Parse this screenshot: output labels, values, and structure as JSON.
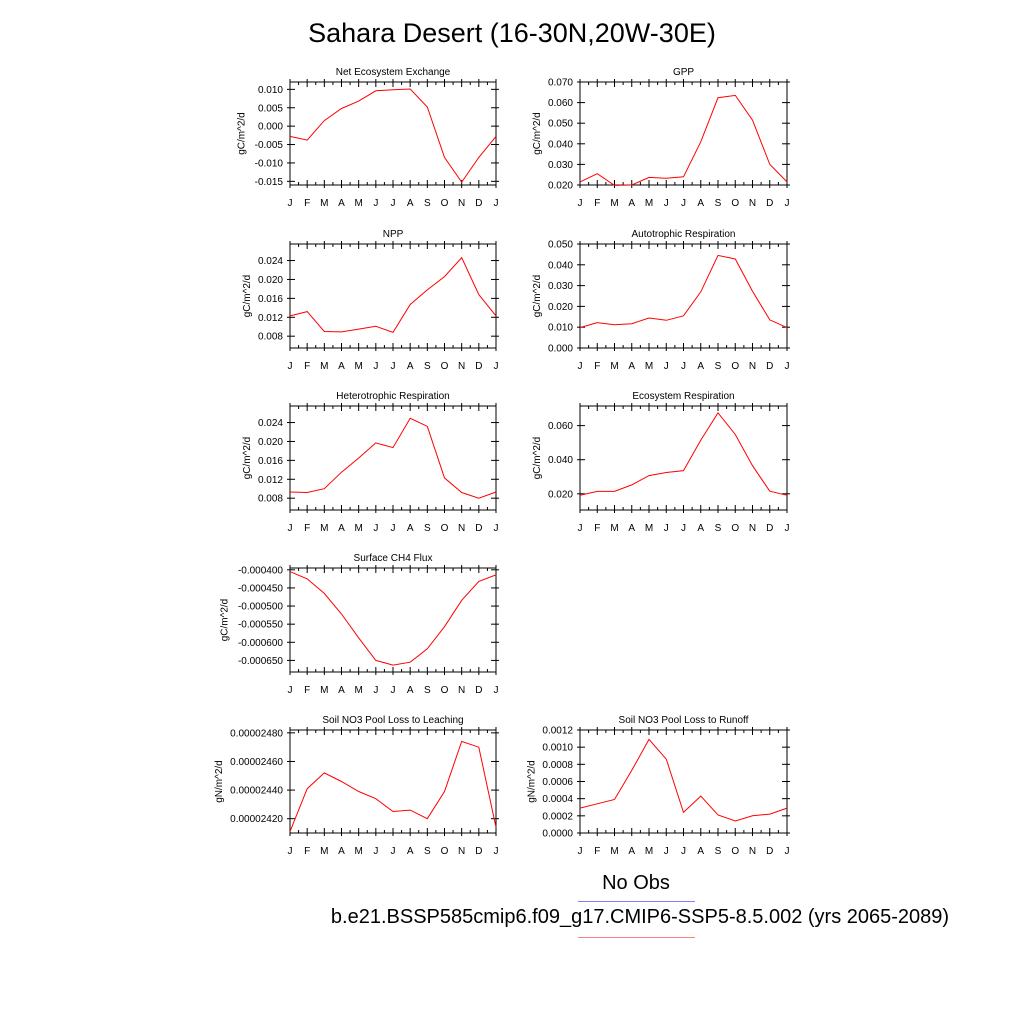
{
  "title": "Sahara Desert (16-30N,20W-30E)",
  "legend": {
    "obs_label": "No Obs",
    "case_label": "b.e21.BSSP585cmip6.f09_g17.CMIP6-SSP5-8.5.002 (yrs 2065-2089)",
    "obs_color": "#8080ff",
    "case_color": "#ff8080"
  },
  "chart_data": [
    {
      "type": "line",
      "title": "Net Ecosystem Exchange",
      "ylabel": "gC/m^2/d",
      "categories": [
        "J",
        "F",
        "M",
        "A",
        "M",
        "J",
        "J",
        "A",
        "S",
        "O",
        "N",
        "D",
        "J"
      ],
      "ylim": [
        -0.016,
        0.012
      ],
      "yticks": [
        -0.015,
        -0.01,
        -0.005,
        0.0,
        0.005,
        0.01
      ],
      "ytick_labels": [
        "-0.015",
        "-0.010",
        "-0.005",
        "0.000",
        "0.005",
        "0.010"
      ],
      "series": [
        {
          "color": "#ff0000",
          "values": [
            -0.0028,
            -0.0038,
            0.0015,
            0.0048,
            0.0068,
            0.0096,
            0.0099,
            0.0101,
            0.0052,
            -0.0085,
            -0.0152,
            -0.0085,
            -0.0028
          ]
        }
      ]
    },
    {
      "type": "line",
      "title": "GPP",
      "ylabel": "gC/m^2/d",
      "categories": [
        "J",
        "F",
        "M",
        "A",
        "M",
        "J",
        "J",
        "A",
        "S",
        "O",
        "N",
        "D",
        "J"
      ],
      "ylim": [
        0.02,
        0.07
      ],
      "yticks": [
        0.02,
        0.03,
        0.04,
        0.05,
        0.06,
        0.07
      ],
      "ytick_labels": [
        "0.020",
        "0.030",
        "0.040",
        "0.050",
        "0.060",
        "0.070"
      ],
      "series": [
        {
          "color": "#ff0000",
          "values": [
            0.0215,
            0.0255,
            0.0198,
            0.02,
            0.0237,
            0.0233,
            0.024,
            0.041,
            0.0624,
            0.0635,
            0.0515,
            0.03,
            0.0215
          ]
        }
      ]
    },
    {
      "type": "line",
      "title": "NPP",
      "ylabel": "gC/m^2/d",
      "categories": [
        "J",
        "F",
        "M",
        "A",
        "M",
        "J",
        "J",
        "A",
        "S",
        "O",
        "N",
        "D",
        "J"
      ],
      "ylim": [
        0.0055,
        0.0275
      ],
      "yticks": [
        0.008,
        0.012,
        0.016,
        0.02,
        0.024
      ],
      "ytick_labels": [
        "0.008",
        "0.012",
        "0.016",
        "0.020",
        "0.024"
      ],
      "series": [
        {
          "color": "#ff0000",
          "values": [
            0.0123,
            0.0132,
            0.009,
            0.0089,
            0.0095,
            0.0101,
            0.0088,
            0.0147,
            0.0178,
            0.0206,
            0.0246,
            0.0168,
            0.0123
          ]
        }
      ]
    },
    {
      "type": "line",
      "title": "Autotrophic Respiration",
      "ylabel": "gC/m^2/d",
      "categories": [
        "J",
        "F",
        "M",
        "A",
        "M",
        "J",
        "J",
        "A",
        "S",
        "O",
        "N",
        "D",
        "J"
      ],
      "ylim": [
        0.0,
        0.05
      ],
      "yticks": [
        0.0,
        0.01,
        0.02,
        0.03,
        0.04,
        0.05
      ],
      "ytick_labels": [
        "0.000",
        "0.010",
        "0.020",
        "0.030",
        "0.040",
        "0.050"
      ],
      "series": [
        {
          "color": "#ff0000",
          "values": [
            0.0098,
            0.0122,
            0.0112,
            0.0117,
            0.0144,
            0.0133,
            0.0155,
            0.027,
            0.0445,
            0.0428,
            0.0273,
            0.0135,
            0.0098
          ]
        }
      ]
    },
    {
      "type": "line",
      "title": "Heterotrophic Respiration",
      "ylabel": "gC/m^2/d",
      "categories": [
        "J",
        "F",
        "M",
        "A",
        "M",
        "J",
        "J",
        "A",
        "S",
        "O",
        "N",
        "D",
        "J"
      ],
      "ylim": [
        0.0055,
        0.0275
      ],
      "yticks": [
        0.008,
        0.012,
        0.016,
        0.02,
        0.024
      ],
      "ytick_labels": [
        "0.008",
        "0.012",
        "0.016",
        "0.020",
        "0.024"
      ],
      "series": [
        {
          "color": "#ff0000",
          "values": [
            0.0093,
            0.0092,
            0.01,
            0.0135,
            0.0165,
            0.0197,
            0.0187,
            0.0249,
            0.0232,
            0.0123,
            0.0092,
            0.008,
            0.0093
          ]
        }
      ]
    },
    {
      "type": "line",
      "title": "Ecosystem Respiration",
      "ylabel": "gC/m^2/d",
      "categories": [
        "J",
        "F",
        "M",
        "A",
        "M",
        "J",
        "J",
        "A",
        "S",
        "O",
        "N",
        "D",
        "J"
      ],
      "ylim": [
        0.0105,
        0.0715
      ],
      "yticks": [
        0.02,
        0.04,
        0.06
      ],
      "ytick_labels": [
        "0.020",
        "0.040",
        "0.060"
      ],
      "series": [
        {
          "color": "#ff0000",
          "values": [
            0.0191,
            0.0214,
            0.0214,
            0.0252,
            0.0307,
            0.0325,
            0.0336,
            0.0515,
            0.0675,
            0.0548,
            0.0365,
            0.0215,
            0.0191
          ]
        }
      ]
    },
    {
      "type": "line",
      "title": "Surface CH4 Flux",
      "ylabel": "gC/m^2/d",
      "categories": [
        "J",
        "F",
        "M",
        "A",
        "M",
        "J",
        "J",
        "A",
        "S",
        "O",
        "N",
        "D",
        "J"
      ],
      "ylim": [
        -0.000682,
        -0.000395
      ],
      "yticks": [
        -0.00065,
        -0.0006,
        -0.00055,
        -0.0005,
        -0.00045,
        -0.0004
      ],
      "ytick_labels": [
        "-0.000650",
        "-0.000600",
        "-0.000550",
        "-0.000500",
        "-0.000450",
        "-0.000400"
      ],
      "series": [
        {
          "color": "#ff0000",
          "values": [
            -0.000405,
            -0.000425,
            -0.000465,
            -0.000522,
            -0.000588,
            -0.00065,
            -0.000663,
            -0.000655,
            -0.000618,
            -0.000557,
            -0.000484,
            -0.000432,
            -0.000414
          ]
        }
      ]
    },
    {
      "type": "line",
      "title": "Soil NO3 Pool Loss to Leaching",
      "ylabel": "gN/m^2/d",
      "categories": [
        "J",
        "F",
        "M",
        "A",
        "M",
        "J",
        "J",
        "A",
        "S",
        "O",
        "N",
        "D",
        "J"
      ],
      "ylim": [
        2.41e-05,
        2.482e-05
      ],
      "yticks": [
        2.42e-05,
        2.44e-05,
        2.46e-05,
        2.48e-05
      ],
      "ytick_labels": [
        "0.00002420",
        "0.00002440",
        "0.00002460",
        "0.00002480"
      ],
      "series": [
        {
          "color": "#ff0000",
          "values": [
            2.411e-05,
            2.441e-05,
            2.452e-05,
            2.446e-05,
            2.439e-05,
            2.434e-05,
            2.425e-05,
            2.426e-05,
            2.42e-05,
            2.439e-05,
            2.474e-05,
            2.47e-05,
            2.414e-05
          ]
        }
      ]
    },
    {
      "type": "line",
      "title": "Soil NO3 Pool Loss to Runoff",
      "ylabel": "gN/m^2/d",
      "categories": [
        "J",
        "F",
        "M",
        "A",
        "M",
        "J",
        "J",
        "A",
        "S",
        "O",
        "N",
        "D",
        "J"
      ],
      "ylim": [
        0.0,
        0.0012
      ],
      "yticks": [
        0.0,
        0.0002,
        0.0004,
        0.0006,
        0.0008,
        0.001,
        0.0012
      ],
      "ytick_labels": [
        "0.0000",
        "0.0002",
        "0.0004",
        "0.0006",
        "0.0008",
        "0.0010",
        "0.0012"
      ],
      "series": [
        {
          "color": "#ff0000",
          "values": [
            0.00029,
            0.00034,
            0.00039,
            0.00073,
            0.00109,
            0.00086,
            0.00024,
            0.00043,
            0.00021,
            0.00014,
            0.0002,
            0.00022,
            0.00029
          ]
        }
      ]
    }
  ]
}
